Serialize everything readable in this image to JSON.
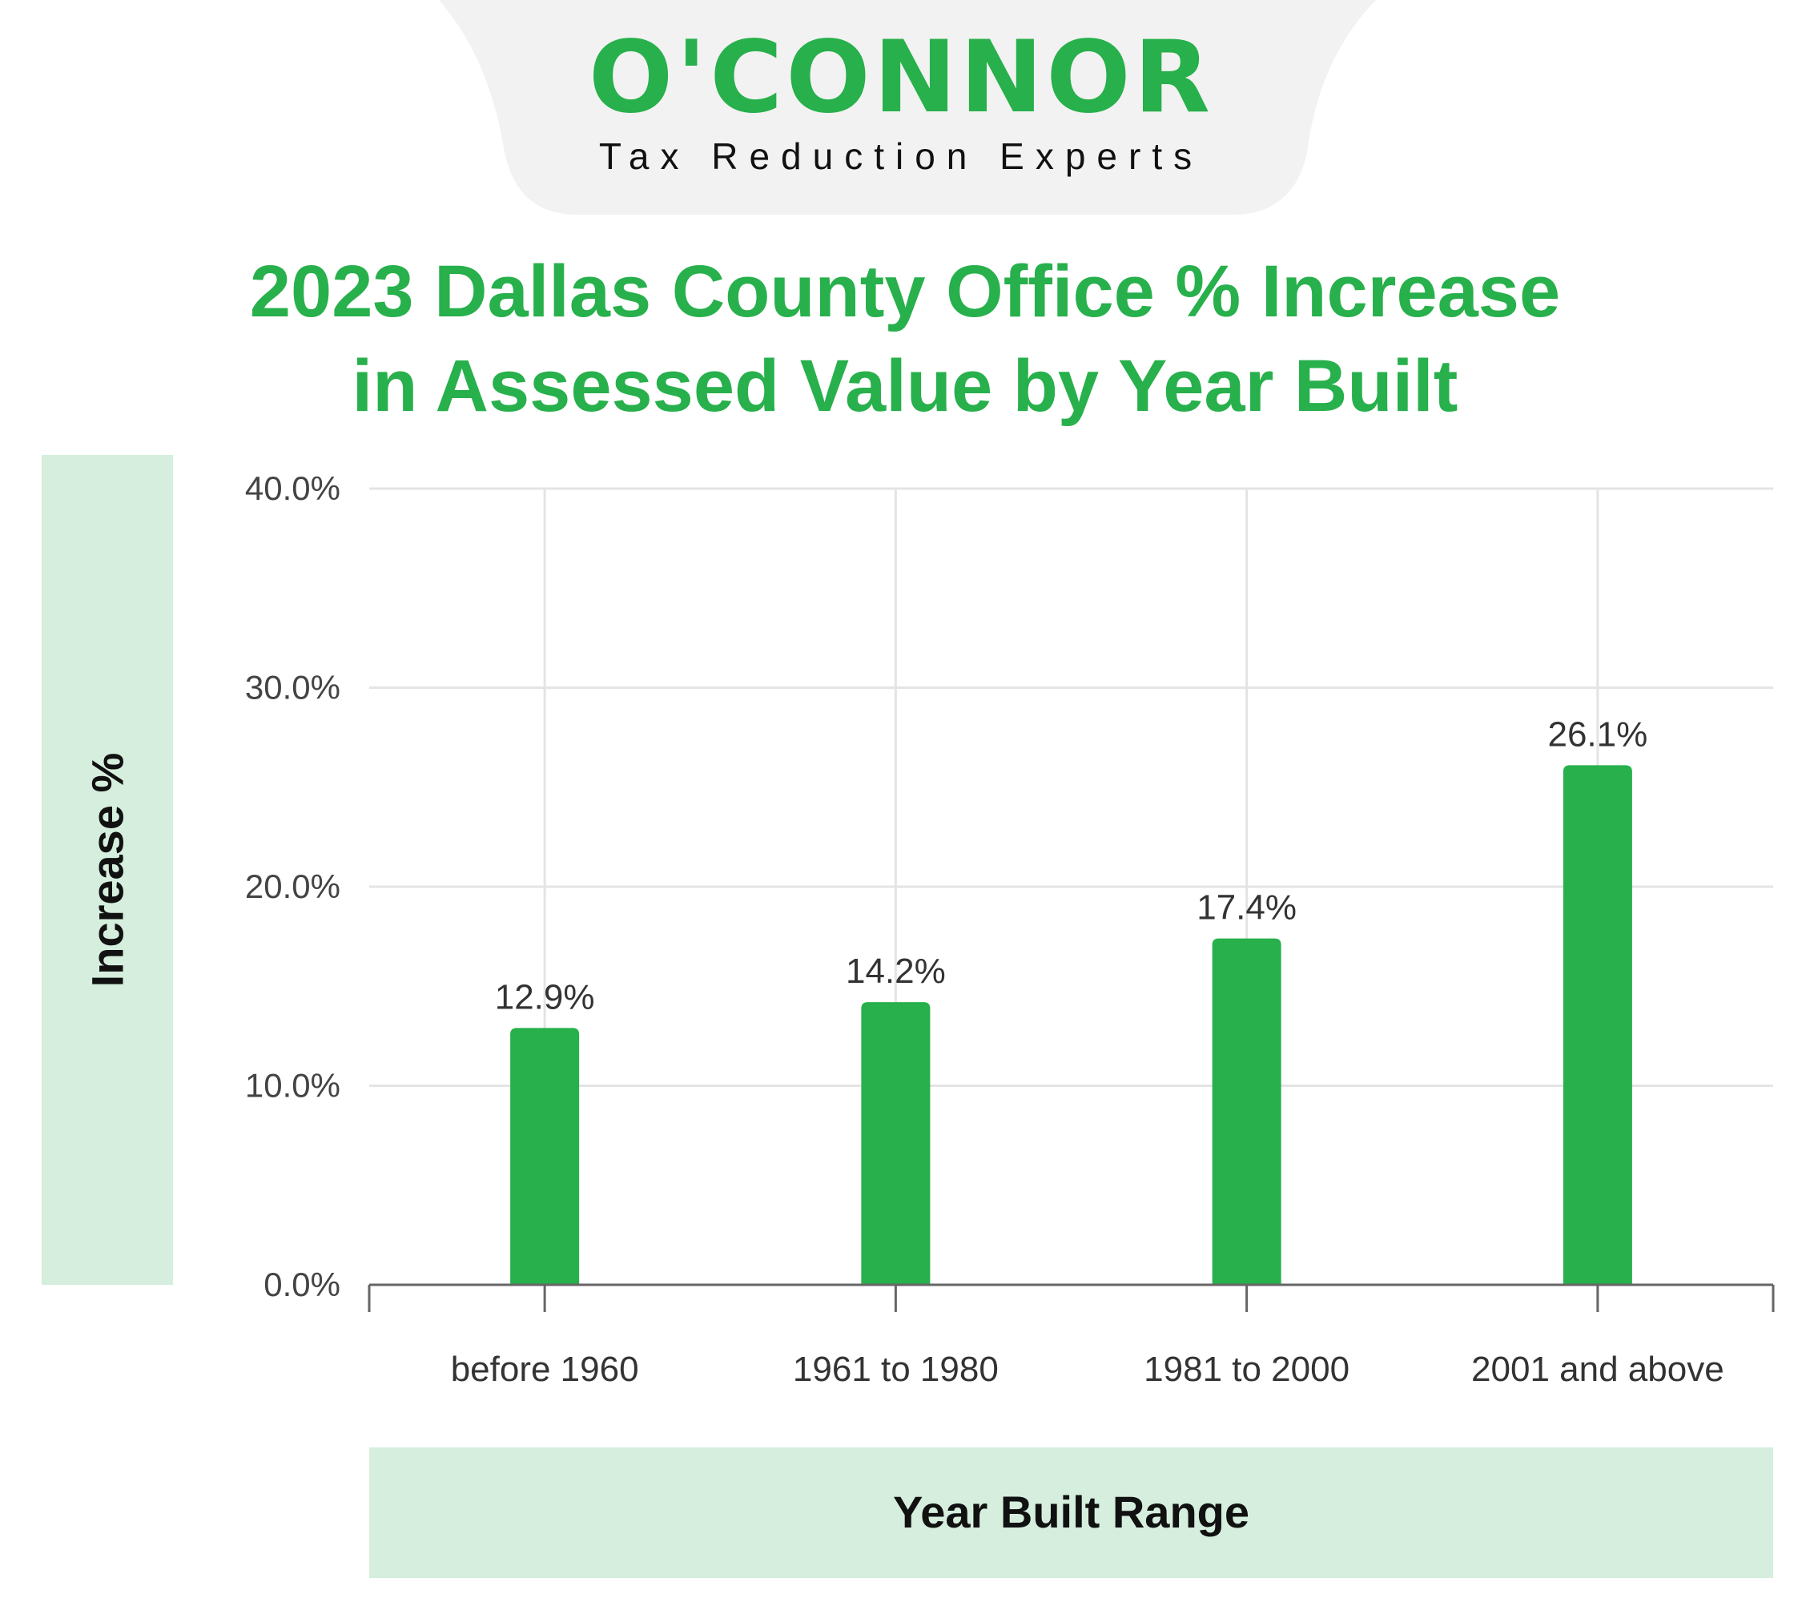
{
  "brand": {
    "name": "O'CONNOR",
    "tagline": "Tax Reduction Experts"
  },
  "colors": {
    "brand_green": "#27b04b",
    "panel_green": "#d5eedd",
    "header_gray": "#f2f2f2"
  },
  "chart_data": {
    "type": "bar",
    "title": "2023 Dallas County Office % Increase in Assessed Value by Year Built",
    "title_lines": [
      "2023 Dallas County Office % Increase",
      "in Assessed Value by Year Built"
    ],
    "xlabel": "Year Built Range",
    "ylabel": "Increase %",
    "categories": [
      "before 1960",
      "1961 to 1980",
      "1981 to 2000",
      "2001 and above"
    ],
    "values": [
      12.9,
      14.2,
      17.4,
      26.1
    ],
    "value_labels": [
      "12.9%",
      "14.2%",
      "17.4%",
      "26.1%"
    ],
    "ylim": [
      0,
      40
    ],
    "yticks": [
      0,
      10,
      20,
      30,
      40
    ],
    "ytick_labels": [
      "0.0%",
      "10.0%",
      "20.0%",
      "30.0%",
      "40.0%"
    ],
    "grid": true,
    "legend": "none",
    "bar_color": "#27b04b"
  }
}
